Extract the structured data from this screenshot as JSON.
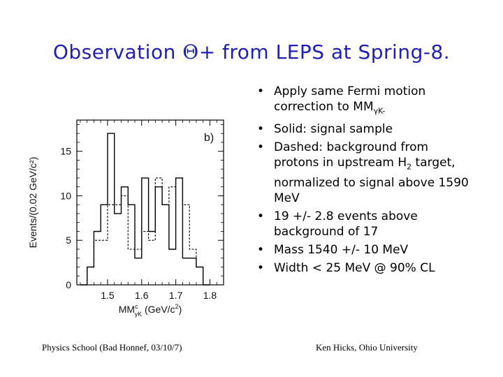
{
  "title": {
    "before": "Observation ",
    "symbol": "Θ",
    "after": "+ from LEPS at Spring-8."
  },
  "bullets": [
    {
      "parts": [
        {
          "t": "Apply same Fermi motion correction to MM"
        },
        {
          "t": "γK-",
          "sub": true
        }
      ]
    },
    {
      "parts": [
        {
          "t": "Solid: signal sample"
        }
      ]
    },
    {
      "parts": [
        {
          "t": "Dashed: background from protons in upstream H"
        },
        {
          "t": "2",
          "sub": true
        },
        {
          "t": " target, normalized to signal above 1590 MeV"
        }
      ]
    },
    {
      "parts": [
        {
          "t": "19 +/- 2.8 events above background of 17"
        }
      ]
    },
    {
      "parts": [
        {
          "t": "Mass 1540 +/- 10 MeV"
        }
      ]
    },
    {
      "parts": [
        {
          "t": "Width < 25 MeV @ 90% CL"
        }
      ]
    }
  ],
  "footer": {
    "left": "Physics School (Bad Honnef, 03/10/7)",
    "right": "Ken Hicks, Ohio University"
  },
  "chart_data": {
    "type": "histogram",
    "panel_label": "b)",
    "xlabel": "MM",
    "xlabel_sup": "c",
    "xlabel_sub": "γK",
    "xlabel_units": " (GeV/c",
    "xlabel_units_sup": "2",
    "xlabel_units_end": ")",
    "ylabel": "Events/(0.02 GeV/c²)",
    "xlim": [
      1.41,
      1.84
    ],
    "ylim": [
      0,
      18.5
    ],
    "xticks": [
      {
        "v": 1.5,
        "label": "1.5"
      },
      {
        "v": 1.6,
        "label": "1.6"
      },
      {
        "v": 1.7,
        "label": "1.7"
      },
      {
        "v": 1.8,
        "label": "1.8"
      }
    ],
    "yticks": [
      {
        "v": 0,
        "label": "0"
      },
      {
        "v": 5,
        "label": "5"
      },
      {
        "v": 10,
        "label": "10"
      },
      {
        "v": 15,
        "label": "15"
      }
    ],
    "bin_width": 0.02,
    "series": [
      {
        "style": "solid",
        "color": "#000000",
        "bins": [
          [
            1.43,
            0
          ],
          [
            1.45,
            2
          ],
          [
            1.47,
            6
          ],
          [
            1.49,
            9
          ],
          [
            1.51,
            17
          ],
          [
            1.53,
            8
          ],
          [
            1.55,
            11
          ],
          [
            1.57,
            9
          ],
          [
            1.59,
            3
          ],
          [
            1.61,
            12
          ],
          [
            1.63,
            6
          ],
          [
            1.65,
            11
          ],
          [
            1.67,
            9
          ],
          [
            1.69,
            4
          ],
          [
            1.71,
            12
          ],
          [
            1.73,
            3
          ],
          [
            1.75,
            3
          ],
          [
            1.77,
            2
          ],
          [
            1.79,
            0
          ]
        ]
      },
      {
        "style": "dashed",
        "color": "#000000",
        "bins": [
          [
            1.43,
            0
          ],
          [
            1.45,
            2
          ],
          [
            1.47,
            5
          ],
          [
            1.49,
            5
          ],
          [
            1.51,
            9
          ],
          [
            1.53,
            9
          ],
          [
            1.55,
            10
          ],
          [
            1.57,
            4
          ],
          [
            1.59,
            4
          ],
          [
            1.61,
            6
          ],
          [
            1.63,
            5
          ],
          [
            1.65,
            12
          ],
          [
            1.67,
            9
          ],
          [
            1.69,
            11
          ],
          [
            1.71,
            12
          ],
          [
            1.73,
            9
          ],
          [
            1.75,
            4
          ],
          [
            1.77,
            2
          ],
          [
            1.79,
            0
          ]
        ]
      }
    ]
  }
}
